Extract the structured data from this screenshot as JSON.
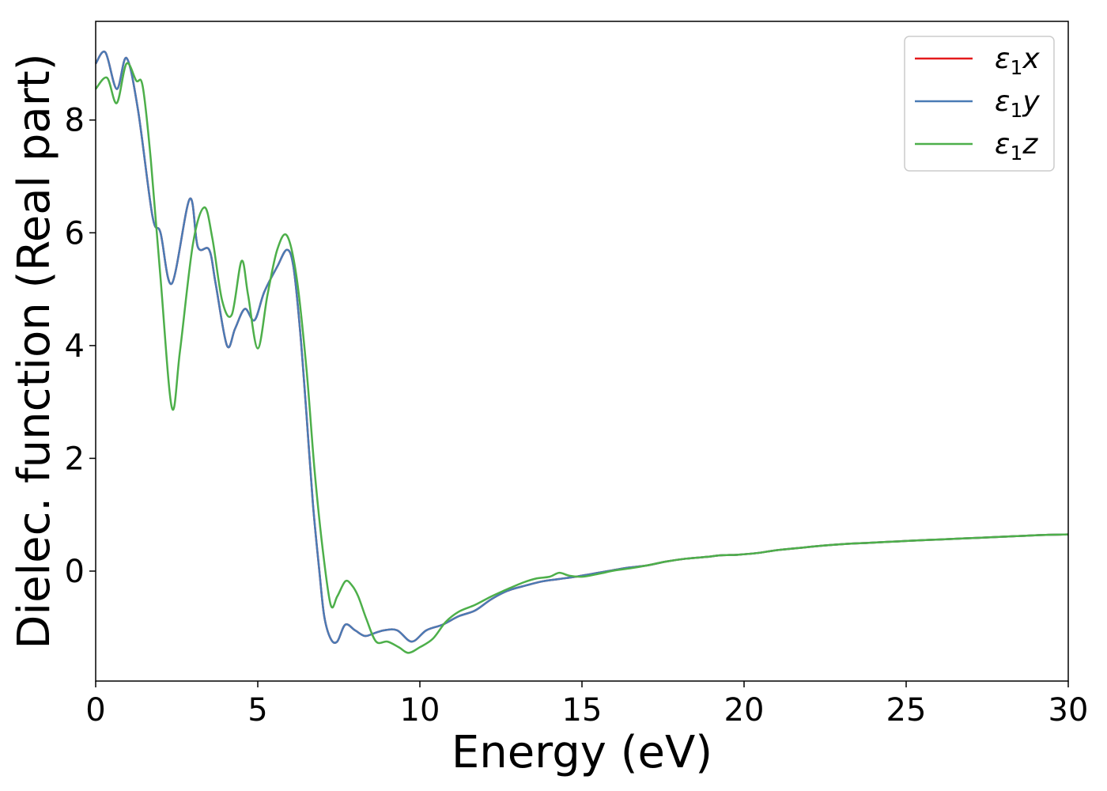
{
  "chart_data": {
    "type": "line",
    "xlabel": "Energy (eV)",
    "ylabel": "Dielec. function (Real part)",
    "xlim": [
      0,
      30
    ],
    "ylim": [
      -1.95,
      9.75
    ],
    "xticks": [
      0,
      5,
      10,
      15,
      20,
      25,
      30
    ],
    "yticks": [
      0,
      2,
      4,
      6,
      8
    ],
    "xtick_labels": [
      "0",
      "5",
      "10",
      "15",
      "20",
      "25",
      "30"
    ],
    "ytick_labels": [
      "0",
      "2",
      "4",
      "6",
      "8"
    ],
    "grid": false,
    "legend_position": "top-right",
    "series": [
      {
        "name": "ε₁x",
        "legend_main": "ε",
        "legend_sub": "1",
        "legend_var": "x",
        "color": "#e41a1c",
        "x": [
          0,
          0.3,
          0.65,
          0.95,
          1.3,
          1.75,
          2.0,
          2.35,
          2.9,
          3.15,
          3.5,
          3.7,
          4.05,
          4.3,
          4.6,
          4.9,
          5.2,
          5.6,
          5.9,
          6.1,
          6.3,
          6.5,
          6.7,
          6.9,
          7.05,
          7.25,
          7.45,
          7.7,
          8.0,
          8.3,
          8.6,
          8.9,
          9.3,
          9.75,
          10.2,
          10.7,
          11.2,
          11.7,
          12.2,
          12.7,
          13.3,
          13.8,
          14.3,
          14.8,
          15.3,
          15.8,
          16.4,
          17.0,
          17.6,
          18.2,
          18.8,
          19.3,
          19.8,
          20.4,
          21.0,
          21.7,
          22.4,
          23.1,
          23.8,
          24.5,
          25.2,
          26.0,
          26.8,
          27.6,
          28.4,
          29.2,
          30.0
        ],
        "y": [
          9.0,
          9.2,
          8.55,
          9.1,
          8.2,
          6.3,
          6.0,
          5.1,
          6.6,
          5.75,
          5.7,
          5.1,
          4.0,
          4.3,
          4.65,
          4.45,
          4.95,
          5.4,
          5.7,
          5.4,
          4.3,
          2.8,
          1.2,
          0.0,
          -0.8,
          -1.2,
          -1.25,
          -0.95,
          -1.05,
          -1.15,
          -1.1,
          -1.05,
          -1.05,
          -1.25,
          -1.05,
          -0.95,
          -0.8,
          -0.7,
          -0.5,
          -0.35,
          -0.25,
          -0.18,
          -0.14,
          -0.1,
          -0.05,
          0.0,
          0.06,
          0.1,
          0.17,
          0.22,
          0.25,
          0.28,
          0.29,
          0.32,
          0.37,
          0.41,
          0.45,
          0.48,
          0.5,
          0.52,
          0.54,
          0.56,
          0.58,
          0.6,
          0.62,
          0.64,
          0.65
        ]
      },
      {
        "name": "ε₁y",
        "legend_main": "ε",
        "legend_sub": "1",
        "legend_var": "y",
        "color": "#4a7bb5",
        "x": [
          0,
          0.3,
          0.65,
          0.95,
          1.3,
          1.75,
          2.0,
          2.35,
          2.9,
          3.15,
          3.5,
          3.7,
          4.05,
          4.3,
          4.6,
          4.9,
          5.2,
          5.6,
          5.9,
          6.1,
          6.3,
          6.5,
          6.7,
          6.9,
          7.05,
          7.25,
          7.45,
          7.7,
          8.0,
          8.3,
          8.6,
          8.9,
          9.3,
          9.75,
          10.2,
          10.7,
          11.2,
          11.7,
          12.2,
          12.7,
          13.3,
          13.8,
          14.3,
          14.8,
          15.3,
          15.8,
          16.4,
          17.0,
          17.6,
          18.2,
          18.8,
          19.3,
          19.8,
          20.4,
          21.0,
          21.7,
          22.4,
          23.1,
          23.8,
          24.5,
          25.2,
          26.0,
          26.8,
          27.6,
          28.4,
          29.2,
          30.0
        ],
        "y": [
          9.0,
          9.2,
          8.55,
          9.1,
          8.2,
          6.3,
          6.0,
          5.1,
          6.6,
          5.75,
          5.7,
          5.1,
          4.0,
          4.3,
          4.65,
          4.45,
          4.95,
          5.4,
          5.7,
          5.4,
          4.3,
          2.8,
          1.2,
          0.0,
          -0.8,
          -1.2,
          -1.25,
          -0.95,
          -1.05,
          -1.15,
          -1.1,
          -1.05,
          -1.05,
          -1.25,
          -1.05,
          -0.95,
          -0.8,
          -0.7,
          -0.5,
          -0.35,
          -0.25,
          -0.18,
          -0.14,
          -0.1,
          -0.05,
          0.0,
          0.06,
          0.1,
          0.17,
          0.22,
          0.25,
          0.28,
          0.29,
          0.32,
          0.37,
          0.41,
          0.45,
          0.48,
          0.5,
          0.52,
          0.54,
          0.56,
          0.58,
          0.6,
          0.62,
          0.64,
          0.65
        ]
      },
      {
        "name": "ε₁z",
        "legend_main": "ε",
        "legend_sub": "1",
        "legend_var": "z",
        "color": "#4daf4a",
        "x": [
          0,
          0.35,
          0.65,
          0.95,
          1.25,
          1.45,
          1.7,
          2.0,
          2.35,
          2.6,
          3.0,
          3.35,
          3.6,
          3.9,
          4.2,
          4.5,
          4.7,
          5.0,
          5.3,
          5.6,
          5.9,
          6.2,
          6.5,
          6.75,
          7.0,
          7.25,
          7.45,
          7.7,
          7.9,
          8.1,
          8.35,
          8.65,
          9.0,
          9.35,
          9.65,
          10.0,
          10.4,
          10.8,
          11.2,
          11.7,
          12.2,
          12.7,
          13.2,
          13.6,
          14.0,
          14.3,
          14.6,
          15.0,
          15.5,
          16.0,
          16.5,
          17.0,
          17.6,
          18.2,
          18.8,
          19.3,
          19.8,
          20.4,
          21.0,
          21.7,
          22.4,
          23.1,
          23.8,
          24.5,
          25.2,
          26.0,
          26.8,
          27.6,
          28.4,
          29.2,
          30.0
        ],
        "y": [
          8.55,
          8.75,
          8.3,
          9.0,
          8.7,
          8.6,
          7.3,
          5.2,
          2.9,
          3.9,
          5.8,
          6.45,
          5.9,
          4.8,
          4.55,
          5.5,
          4.9,
          3.95,
          4.9,
          5.7,
          5.95,
          5.2,
          3.6,
          1.8,
          0.4,
          -0.6,
          -0.45,
          -0.18,
          -0.25,
          -0.45,
          -0.85,
          -1.25,
          -1.25,
          -1.35,
          -1.45,
          -1.35,
          -1.2,
          -0.9,
          -0.72,
          -0.6,
          -0.45,
          -0.32,
          -0.2,
          -0.13,
          -0.1,
          -0.03,
          -0.08,
          -0.1,
          -0.05,
          0.01,
          0.05,
          0.1,
          0.17,
          0.22,
          0.25,
          0.28,
          0.29,
          0.32,
          0.37,
          0.41,
          0.45,
          0.48,
          0.5,
          0.52,
          0.54,
          0.56,
          0.58,
          0.6,
          0.62,
          0.64,
          0.65
        ]
      }
    ]
  }
}
